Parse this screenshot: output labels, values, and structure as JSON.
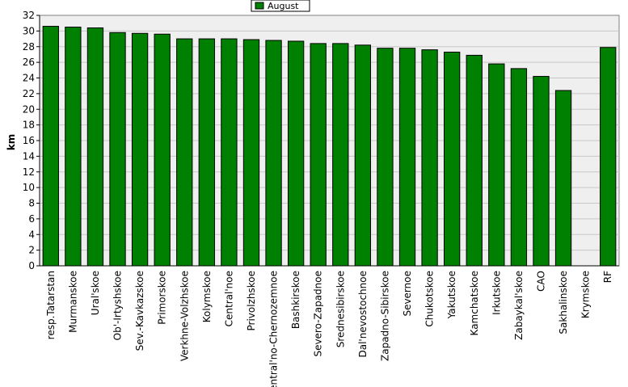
{
  "chart_data": {
    "type": "bar",
    "title": "",
    "xlabel": "",
    "ylabel": "km",
    "ylim": [
      0,
      32
    ],
    "ytick_step": 2,
    "grid": "horizontal",
    "legend_position": "top-center",
    "bar_color": "#008000",
    "plot_background": "#efefef",
    "categories": [
      "resp.Tatarstan",
      "Murmanskoe",
      "Ural'skoe",
      "Ob'-Irtyshskoe",
      "Sev.-Kavkazskoe",
      "Primorskoe",
      "Verkhne-Volzhskoe",
      "Kolymskoe",
      "Central'noe",
      "Privolzhskoe",
      "Central'no-Chernozemnoe",
      "Bashkirskoe",
      "Severo-Zapadnoe",
      "Srednesibirskoe",
      "Dal'nevostochnoe",
      "Zapadno-Sibirskoe",
      "Severnoe",
      "Chukotskoe",
      "Yakutskoe",
      "Kamchatskoe",
      "Irkutskoe",
      "Zabaykal'skoe",
      "CAO",
      "Sakhalinskoe",
      "Krymskoe",
      "RF"
    ],
    "series": [
      {
        "name": "August",
        "values": [
          30.6,
          30.5,
          30.4,
          29.8,
          29.7,
          29.6,
          29.0,
          29.0,
          29.0,
          28.9,
          28.8,
          28.7,
          28.4,
          28.4,
          28.2,
          27.8,
          27.8,
          27.6,
          27.3,
          26.9,
          25.8,
          25.2,
          24.2,
          22.4,
          null,
          27.9
        ]
      }
    ]
  }
}
